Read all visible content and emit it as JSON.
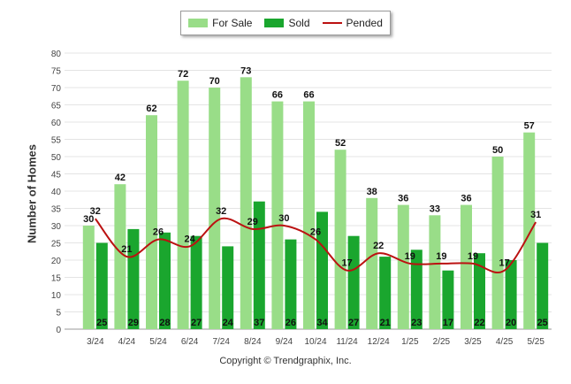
{
  "chart_data": {
    "type": "bar",
    "categories": [
      "3/24",
      "4/24",
      "5/24",
      "6/24",
      "7/24",
      "8/24",
      "9/24",
      "10/24",
      "11/24",
      "12/24",
      "1/25",
      "2/25",
      "3/25",
      "4/25",
      "5/25"
    ],
    "series": [
      {
        "name": "For Sale",
        "type": "bar",
        "color": "#99dd88",
        "values": [
          30,
          42,
          62,
          72,
          70,
          73,
          66,
          66,
          52,
          38,
          36,
          33,
          36,
          50,
          57
        ]
      },
      {
        "name": "Sold",
        "type": "bar",
        "color": "#1aa62e",
        "values": [
          25,
          29,
          28,
          27,
          24,
          37,
          26,
          34,
          27,
          21,
          23,
          17,
          22,
          20,
          25
        ]
      },
      {
        "name": "Pended",
        "type": "line",
        "color": "#bb1111",
        "values": [
          32,
          21,
          26,
          24,
          32,
          29,
          30,
          26,
          17,
          22,
          19,
          19,
          19,
          17,
          31
        ]
      }
    ],
    "ylabel": "Number of Homes",
    "xlabel": "",
    "ylim": [
      0,
      80
    ],
    "yticks": [
      0,
      5,
      10,
      15,
      20,
      25,
      30,
      35,
      40,
      45,
      50,
      55,
      60,
      65,
      70,
      75,
      80
    ],
    "grid": true,
    "legend_position": "top-center"
  },
  "copyright": "Copyright © Trendgraphix, Inc."
}
